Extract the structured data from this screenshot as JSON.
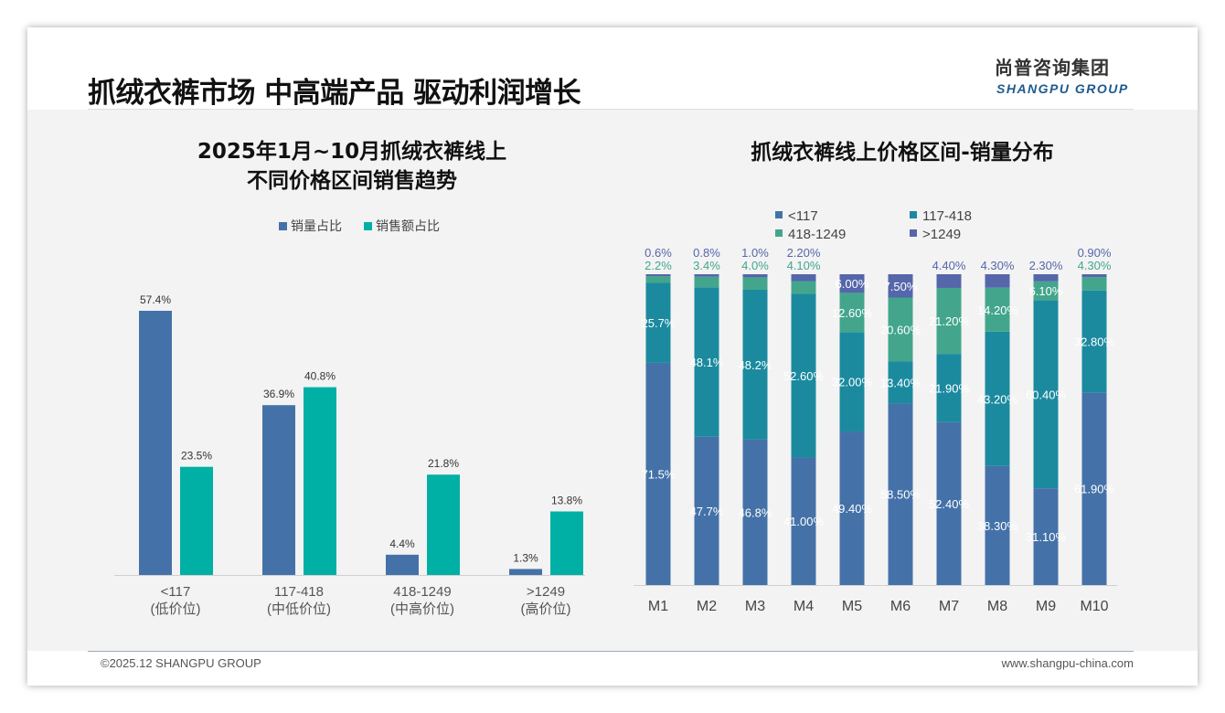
{
  "header": {
    "title": "抓绒衣裤市场 中高端产品 驱动利润增长",
    "logo_cn": "尚普咨询集团",
    "logo_en": "SHANGPU GROUP"
  },
  "footer": {
    "copyright": "©2025.12 SHANGPU GROUP",
    "website": "www.shangpu-china.com"
  },
  "colors": {
    "blue": "#4472a8",
    "teal": "#00b0a5",
    "c1": "#4472a8",
    "c2": "#1b8a9f",
    "c3": "#43a68c",
    "c4": "#5566aa"
  },
  "chart_data": [
    {
      "type": "bar",
      "title_line1": "2025年1月~10月抓绒衣裤线上",
      "title_line2": "不同价格区间销售趋势",
      "categories": [
        "<117",
        "117-418",
        "418-1249",
        ">1249"
      ],
      "category_sub": [
        "(低价位)",
        "(中低价位)",
        "(中高价位)",
        "(高价位)"
      ],
      "series": [
        {
          "name": "销量占比",
          "values": [
            57.4,
            36.9,
            4.4,
            1.3
          ],
          "labels": [
            "57.4%",
            "36.9%",
            "4.4%",
            "1.3%"
          ]
        },
        {
          "name": "销售额占比",
          "values": [
            23.5,
            40.8,
            21.8,
            13.8
          ],
          "labels": [
            "23.5%",
            "40.8%",
            "21.8%",
            "13.8%"
          ]
        }
      ],
      "ylim": [
        0,
        60
      ],
      "legend": "top-center"
    },
    {
      "type": "bar",
      "stacked": true,
      "title": "抓绒衣裤线上价格区间-销量分布",
      "categories": [
        "M1",
        "M2",
        "M3",
        "M4",
        "M5",
        "M6",
        "M7",
        "M8",
        "M9",
        "M10"
      ],
      "series": [
        {
          "name": "<117",
          "values": [
            71.5,
            47.7,
            46.8,
            41.0,
            49.4,
            58.5,
            52.4,
            38.3,
            31.1,
            61.9
          ],
          "labels": [
            "71.5%",
            "47.7%",
            "46.8%",
            "41.00%",
            "49.40%",
            "58.50%",
            "52.40%",
            "38.30%",
            "31.10%",
            "61.90%"
          ]
        },
        {
          "name": "117-418",
          "values": [
            25.7,
            48.1,
            48.2,
            52.6,
            32.0,
            13.4,
            21.9,
            43.2,
            60.4,
            32.8
          ],
          "labels": [
            "25.7%",
            "48.1%",
            "48.2%",
            "52.60%",
            "32.00%",
            "13.40%",
            "21.90%",
            "43.20%",
            "60.40%",
            "32.80%"
          ]
        },
        {
          "name": "418-1249",
          "values": [
            2.2,
            3.4,
            4.0,
            4.1,
            12.6,
            20.6,
            21.2,
            14.2,
            6.1,
            4.3
          ],
          "labels": [
            "2.2%",
            "3.4%",
            "4.0%",
            "4.10%",
            "12.60%",
            "20.60%",
            "21.20%",
            "14.20%",
            "6.10%",
            "4.30%"
          ]
        },
        {
          "name": ">1249",
          "values": [
            0.6,
            0.8,
            1.0,
            2.2,
            6.0,
            7.5,
            4.4,
            4.3,
            2.3,
            0.9
          ],
          "labels": [
            "0.6%",
            "0.8%",
            "1.0%",
            "2.20%",
            "6.00%",
            "7.50%",
            "4.40%",
            "4.30%",
            "2.30%",
            "0.90%"
          ]
        }
      ],
      "ylim": [
        0,
        100
      ],
      "legend": "top"
    }
  ]
}
